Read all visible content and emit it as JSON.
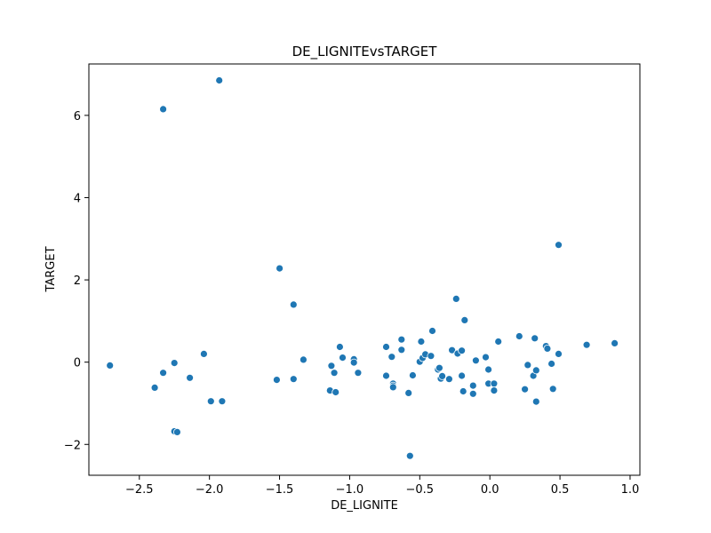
{
  "chart_data": {
    "type": "scatter",
    "title": "DE_LIGNITEvsTARGET",
    "xlabel": "DE_LIGNITE",
    "ylabel": "TARGET",
    "xlim": [
      -2.86,
      1.07
    ],
    "ylim": [
      -2.75,
      7.25
    ],
    "xticks": [
      -2.5,
      -2.0,
      -1.5,
      -1.0,
      -0.5,
      0.0,
      0.5,
      1.0
    ],
    "xtick_labels": [
      "−2.5",
      "−2.0",
      "−1.5",
      "−1.0",
      "−0.5",
      "0.0",
      "0.5",
      "1.0"
    ],
    "yticks": [
      -2,
      0,
      2,
      4,
      6
    ],
    "ytick_labels": [
      "−2",
      "0",
      "2",
      "4",
      "6"
    ],
    "grid": false,
    "marker_color": "#1f77b4",
    "points": [
      [
        -2.71,
        -0.08
      ],
      [
        -2.39,
        -0.62
      ],
      [
        -2.33,
        6.15
      ],
      [
        -2.33,
        -0.26
      ],
      [
        -2.25,
        -0.02
      ],
      [
        -2.25,
        -1.68
      ],
      [
        -2.23,
        -1.7
      ],
      [
        -2.14,
        -0.38
      ],
      [
        -2.04,
        0.2
      ],
      [
        -1.99,
        -0.95
      ],
      [
        -1.93,
        6.85
      ],
      [
        -1.91,
        -0.95
      ],
      [
        -1.52,
        -0.43
      ],
      [
        -1.5,
        2.28
      ],
      [
        -1.4,
        1.4
      ],
      [
        -1.4,
        -0.41
      ],
      [
        -1.33,
        0.06
      ],
      [
        -1.14,
        -0.69
      ],
      [
        -1.13,
        -0.09
      ],
      [
        -1.11,
        -0.26
      ],
      [
        -1.1,
        -0.73
      ],
      [
        -1.07,
        0.37
      ],
      [
        -1.05,
        0.11
      ],
      [
        -0.97,
        0.07
      ],
      [
        -0.97,
        -0.01
      ],
      [
        -0.94,
        -0.26
      ],
      [
        -0.74,
        0.37
      ],
      [
        -0.74,
        -0.33
      ],
      [
        -0.7,
        0.13
      ],
      [
        -0.69,
        -0.52
      ],
      [
        -0.69,
        -0.57
      ],
      [
        -0.69,
        -0.61
      ],
      [
        -0.63,
        0.55
      ],
      [
        -0.63,
        0.3
      ],
      [
        -0.58,
        -0.75
      ],
      [
        -0.57,
        -2.28
      ],
      [
        -0.55,
        -0.32
      ],
      [
        -0.5,
        0.01
      ],
      [
        -0.49,
        0.5
      ],
      [
        -0.48,
        0.1
      ],
      [
        -0.46,
        0.19
      ],
      [
        -0.42,
        0.15
      ],
      [
        -0.41,
        0.76
      ],
      [
        -0.37,
        -0.18
      ],
      [
        -0.36,
        -0.14
      ],
      [
        -0.35,
        -0.4
      ],
      [
        -0.34,
        -0.34
      ],
      [
        -0.29,
        -0.41
      ],
      [
        -0.27,
        0.29
      ],
      [
        -0.24,
        1.54
      ],
      [
        -0.23,
        0.21
      ],
      [
        -0.2,
        0.28
      ],
      [
        -0.2,
        -0.33
      ],
      [
        -0.19,
        -0.71
      ],
      [
        -0.18,
        1.02
      ],
      [
        -0.12,
        -0.57
      ],
      [
        -0.12,
        -0.77
      ],
      [
        -0.1,
        0.04
      ],
      [
        -0.03,
        0.12
      ],
      [
        -0.01,
        -0.18
      ],
      [
        -0.01,
        -0.52
      ],
      [
        0.03,
        -0.52
      ],
      [
        0.03,
        -0.69
      ],
      [
        0.06,
        0.5
      ],
      [
        0.21,
        0.63
      ],
      [
        0.25,
        -0.66
      ],
      [
        0.27,
        -0.07
      ],
      [
        0.31,
        -0.33
      ],
      [
        0.32,
        0.58
      ],
      [
        0.33,
        -0.2
      ],
      [
        0.33,
        -0.96
      ],
      [
        0.4,
        0.39
      ],
      [
        0.41,
        0.33
      ],
      [
        0.44,
        -0.04
      ],
      [
        0.45,
        -0.65
      ],
      [
        0.49,
        2.85
      ],
      [
        0.49,
        0.2
      ],
      [
        0.69,
        0.42
      ],
      [
        0.89,
        0.46
      ]
    ]
  }
}
